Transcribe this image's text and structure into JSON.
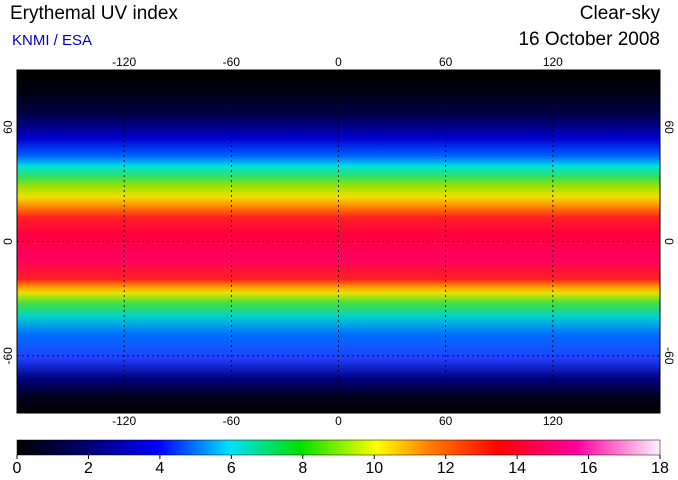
{
  "header": {
    "title": "Erythemal UV index",
    "source": "KNMI / ESA",
    "condition": "Clear-sky",
    "date": "16 October 2008"
  },
  "map": {
    "lonlim": [
      -180,
      180
    ],
    "latlim": [
      -90,
      90
    ],
    "lon_ticks": [
      -120,
      -60,
      0,
      60,
      120
    ],
    "lat_ticks": [
      60,
      0,
      -60
    ]
  },
  "colorbar": {
    "range": [
      0,
      18
    ],
    "ticks": [
      0,
      2,
      4,
      6,
      8,
      10,
      12,
      14,
      16,
      18
    ]
  }
}
